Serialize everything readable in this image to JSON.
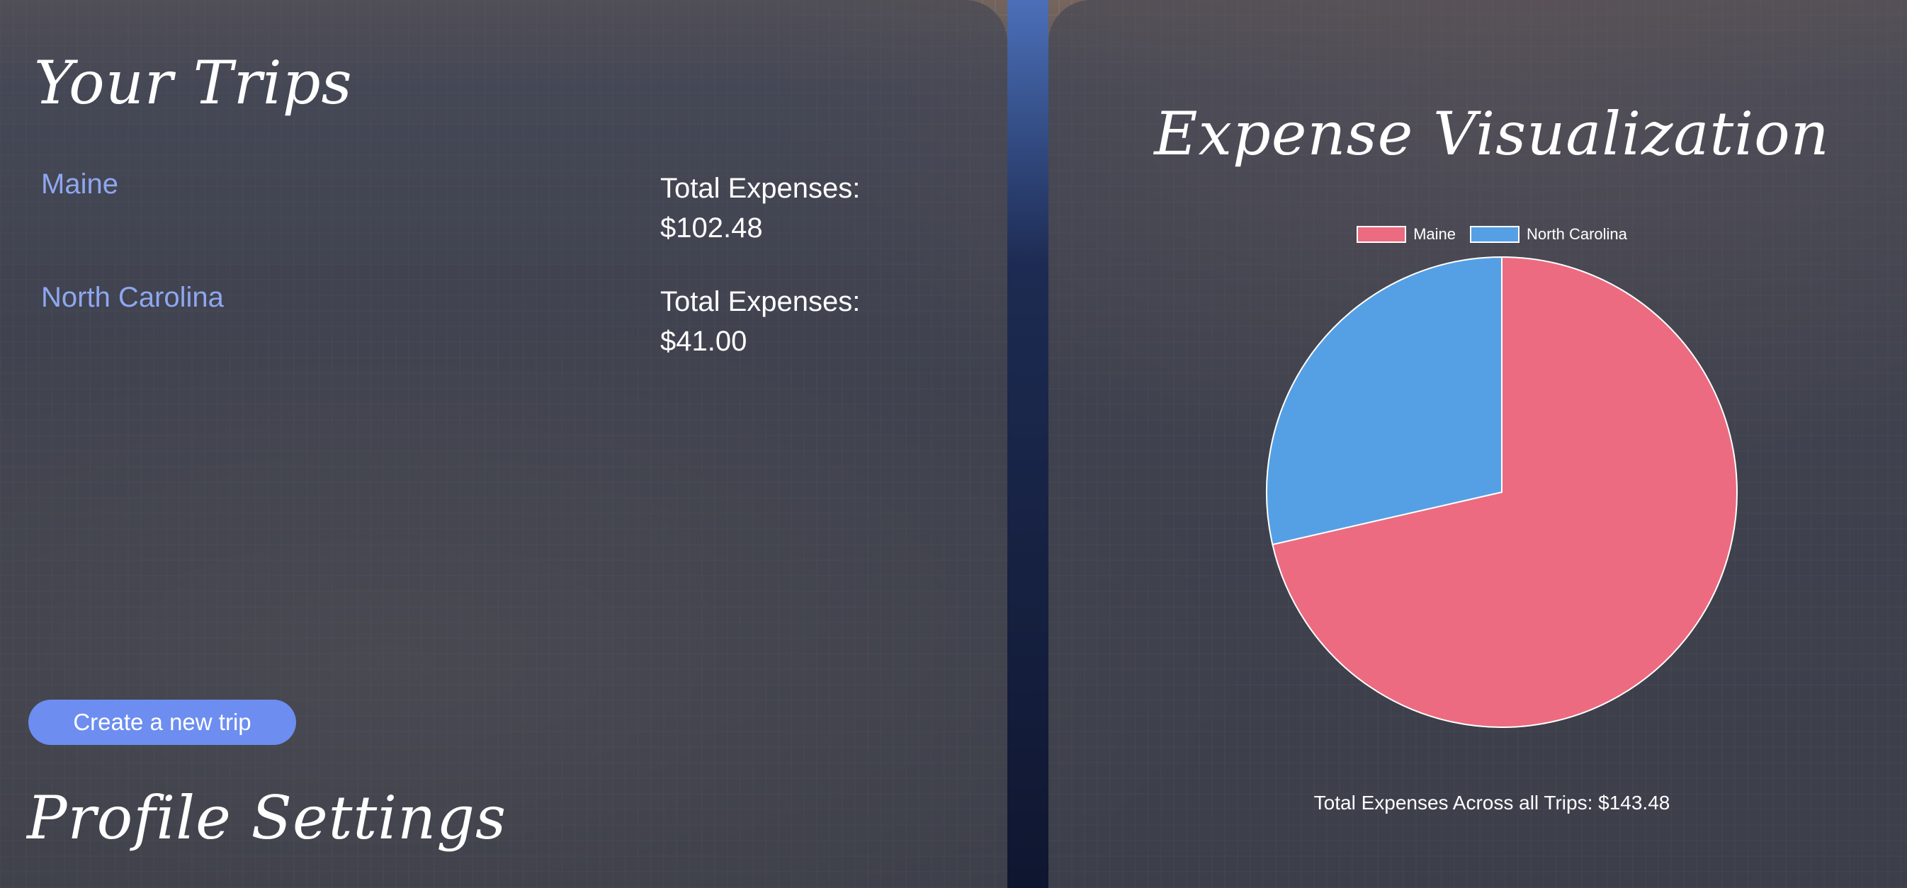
{
  "trips_panel": {
    "title": "Your Trips",
    "trips": [
      {
        "name": "Maine",
        "expense_label": "Total Expenses:",
        "expense_value": "$102.48"
      },
      {
        "name": "North Carolina",
        "expense_label": "Total Expenses:",
        "expense_value": "$41.00"
      }
    ],
    "create_button_label": "Create a new trip"
  },
  "profile": {
    "title": "Profile Settings"
  },
  "visualization": {
    "title": "Expense Visualization",
    "total_text": "Total Expenses Across all Trips: $143.48"
  },
  "colors": {
    "maine": "#ec6b80",
    "north_carolina": "#55a0e4",
    "link": "#8fa7f0",
    "button": "#6d8ef0"
  },
  "chart_data": {
    "type": "pie",
    "categories": [
      "Maine",
      "North Carolina"
    ],
    "values": [
      102.48,
      41.0
    ],
    "colors": [
      "#ec6b80",
      "#55a0e4"
    ],
    "legend": "top",
    "title": ""
  }
}
